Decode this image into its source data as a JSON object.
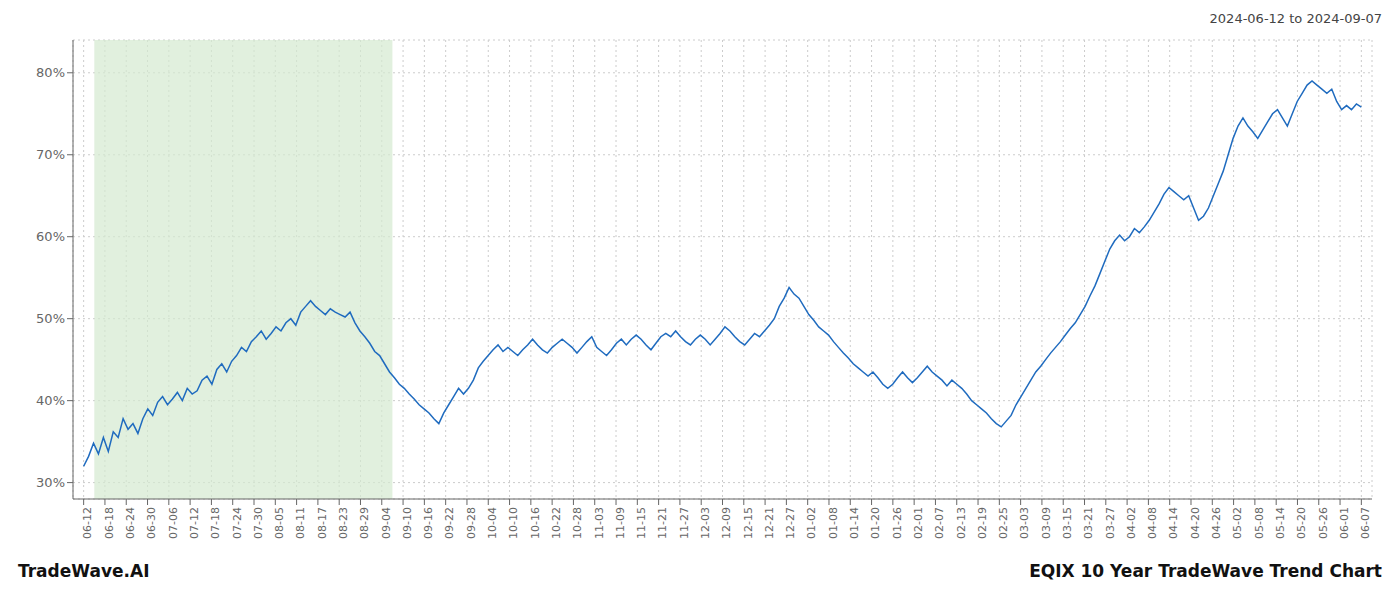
{
  "chart_data": {
    "type": "line",
    "title": "EQIX 10 Year TradeWave Trend Chart",
    "subtitle": "2024-06-12 to 2024-09-07",
    "annotation": "TradeWave.AI",
    "color": "#1f6bbf",
    "grid": true,
    "ylim": [
      28,
      84
    ],
    "yticks": [
      {
        "value": 30,
        "label": "30%"
      },
      {
        "value": 40,
        "label": "40%"
      },
      {
        "value": 50,
        "label": "50%"
      },
      {
        "value": 60,
        "label": "60%"
      },
      {
        "value": 70,
        "label": "70%"
      },
      {
        "value": 80,
        "label": "80%"
      }
    ],
    "xlim": [
      -0.5,
      60.5
    ],
    "xticks": [
      {
        "value": 0,
        "label": "06-12"
      },
      {
        "value": 1,
        "label": "06-18"
      },
      {
        "value": 2,
        "label": "06-24"
      },
      {
        "value": 3,
        "label": "06-30"
      },
      {
        "value": 4,
        "label": "07-06"
      },
      {
        "value": 5,
        "label": "07-12"
      },
      {
        "value": 6,
        "label": "07-18"
      },
      {
        "value": 7,
        "label": "07-24"
      },
      {
        "value": 8,
        "label": "07-30"
      },
      {
        "value": 9,
        "label": "08-05"
      },
      {
        "value": 10,
        "label": "08-11"
      },
      {
        "value": 11,
        "label": "08-17"
      },
      {
        "value": 12,
        "label": "08-23"
      },
      {
        "value": 13,
        "label": "08-29"
      },
      {
        "value": 14,
        "label": "09-04"
      },
      {
        "value": 15,
        "label": "09-10"
      },
      {
        "value": 16,
        "label": "09-16"
      },
      {
        "value": 17,
        "label": "09-22"
      },
      {
        "value": 18,
        "label": "09-28"
      },
      {
        "value": 19,
        "label": "10-04"
      },
      {
        "value": 20,
        "label": "10-10"
      },
      {
        "value": 21,
        "label": "10-16"
      },
      {
        "value": 22,
        "label": "10-22"
      },
      {
        "value": 23,
        "label": "10-28"
      },
      {
        "value": 24,
        "label": "11-03"
      },
      {
        "value": 25,
        "label": "11-09"
      },
      {
        "value": 26,
        "label": "11-15"
      },
      {
        "value": 27,
        "label": "11-21"
      },
      {
        "value": 28,
        "label": "11-27"
      },
      {
        "value": 29,
        "label": "12-03"
      },
      {
        "value": 30,
        "label": "12-09"
      },
      {
        "value": 31,
        "label": "12-15"
      },
      {
        "value": 32,
        "label": "12-21"
      },
      {
        "value": 33,
        "label": "12-27"
      },
      {
        "value": 34,
        "label": "01-02"
      },
      {
        "value": 35,
        "label": "01-08"
      },
      {
        "value": 36,
        "label": "01-14"
      },
      {
        "value": 37,
        "label": "01-20"
      },
      {
        "value": 38,
        "label": "01-26"
      },
      {
        "value": 39,
        "label": "02-01"
      },
      {
        "value": 40,
        "label": "02-07"
      },
      {
        "value": 41,
        "label": "02-13"
      },
      {
        "value": 42,
        "label": "02-19"
      },
      {
        "value": 43,
        "label": "02-25"
      },
      {
        "value": 44,
        "label": "03-03"
      },
      {
        "value": 45,
        "label": "03-09"
      },
      {
        "value": 46,
        "label": "03-15"
      },
      {
        "value": 47,
        "label": "03-21"
      },
      {
        "value": 48,
        "label": "03-27"
      },
      {
        "value": 49,
        "label": "04-02"
      },
      {
        "value": 50,
        "label": "04-08"
      },
      {
        "value": 51,
        "label": "04-14"
      },
      {
        "value": 52,
        "label": "04-20"
      },
      {
        "value": 53,
        "label": "04-26"
      },
      {
        "value": 54,
        "label": "05-02"
      },
      {
        "value": 55,
        "label": "05-08"
      },
      {
        "value": 56,
        "label": "05-14"
      },
      {
        "value": 57,
        "label": "05-20"
      },
      {
        "value": 58,
        "label": "05-26"
      },
      {
        "value": 59,
        "label": "06-01"
      },
      {
        "value": 60,
        "label": "06-07"
      }
    ],
    "highlight": {
      "x": [
        0.5,
        14.5
      ],
      "color": "#d4e9d0"
    },
    "values": [
      32.0,
      33.2,
      34.8,
      33.5,
      35.5,
      33.8,
      36.2,
      35.5,
      37.8,
      36.5,
      37.2,
      36.0,
      37.8,
      39.0,
      38.2,
      39.8,
      40.5,
      39.5,
      40.2,
      41.0,
      40.0,
      41.5,
      40.8,
      41.2,
      42.5,
      43.0,
      42.0,
      43.8,
      44.5,
      43.5,
      44.8,
      45.5,
      46.5,
      46.0,
      47.2,
      47.8,
      48.5,
      47.5,
      48.2,
      49.0,
      48.5,
      49.5,
      50.0,
      49.2,
      50.8,
      51.5,
      52.2,
      51.5,
      51.0,
      50.5,
      51.2,
      50.8,
      50.5,
      50.2,
      50.8,
      49.5,
      48.5,
      47.8,
      47.0,
      46.0,
      45.5,
      44.5,
      43.5,
      42.8,
      42.0,
      41.5,
      40.8,
      40.2,
      39.5,
      39.0,
      38.5,
      37.8,
      37.2,
      38.5,
      39.5,
      40.5,
      41.5,
      40.8,
      41.5,
      42.5,
      44.0,
      44.8,
      45.5,
      46.2,
      46.8,
      46.0,
      46.5,
      46.0,
      45.5,
      46.2,
      46.8,
      47.5,
      46.8,
      46.2,
      45.8,
      46.5,
      47.0,
      47.5,
      47.0,
      46.5,
      45.8,
      46.5,
      47.2,
      47.8,
      46.5,
      46.0,
      45.5,
      46.2,
      47.0,
      47.5,
      46.8,
      47.5,
      48.0,
      47.5,
      46.8,
      46.2,
      47.0,
      47.8,
      48.2,
      47.8,
      48.5,
      47.8,
      47.2,
      46.8,
      47.5,
      48.0,
      47.5,
      46.8,
      47.5,
      48.2,
      49.0,
      48.5,
      47.8,
      47.2,
      46.8,
      47.5,
      48.2,
      47.8,
      48.5,
      49.2,
      50.0,
      51.5,
      52.5,
      53.8,
      53.0,
      52.5,
      51.5,
      50.5,
      49.8,
      49.0,
      48.5,
      48.0,
      47.2,
      46.5,
      45.8,
      45.2,
      44.5,
      44.0,
      43.5,
      43.0,
      43.5,
      42.8,
      42.0,
      41.5,
      42.0,
      42.8,
      43.5,
      42.8,
      42.2,
      42.8,
      43.5,
      44.2,
      43.5,
      43.0,
      42.5,
      41.8,
      42.5,
      42.0,
      41.5,
      40.8,
      40.0,
      39.5,
      39.0,
      38.5,
      37.8,
      37.2,
      36.8,
      37.5,
      38.2,
      39.5,
      40.5,
      41.5,
      42.5,
      43.5,
      44.2,
      45.0,
      45.8,
      46.5,
      47.2,
      48.0,
      48.8,
      49.5,
      50.5,
      51.5,
      52.8,
      54.0,
      55.5,
      57.0,
      58.5,
      59.5,
      60.2,
      59.5,
      60.0,
      61.0,
      60.5,
      61.2,
      62.0,
      63.0,
      64.0,
      65.2,
      66.0,
      65.5,
      65.0,
      64.5,
      65.0,
      63.5,
      62.0,
      62.5,
      63.5,
      65.0,
      66.5,
      68.0,
      70.0,
      72.0,
      73.5,
      74.5,
      73.5,
      72.8,
      72.0,
      73.0,
      74.0,
      75.0,
      75.5,
      74.5,
      73.5,
      75.0,
      76.5,
      77.5,
      78.5,
      79.0,
      78.5,
      78.0,
      77.5,
      78.0,
      76.5,
      75.5,
      76.0,
      75.5,
      76.2,
      75.8
    ]
  }
}
